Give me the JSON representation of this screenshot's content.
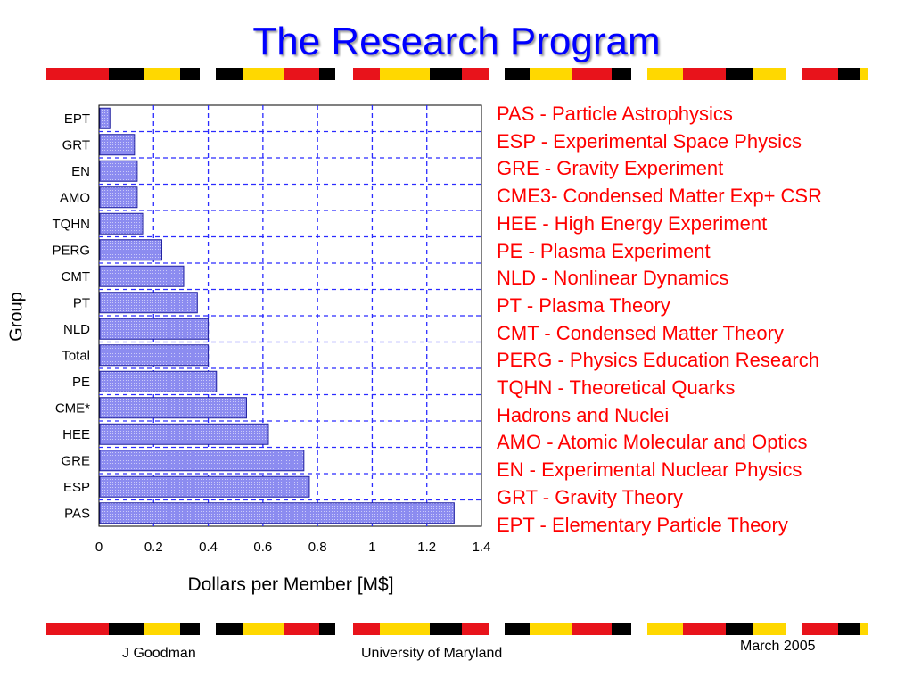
{
  "title": "The Research Program",
  "colors": {
    "title": "#0000ff",
    "legend_text": "#ff0000",
    "bar_fill": "#8c8cf0",
    "bar_stroke": "#2020a0",
    "grid": "#2b2bff",
    "band": [
      "#e8131b",
      "#000000",
      "#ffd800",
      "#ffffff"
    ]
  },
  "chart_data": {
    "type": "bar",
    "orientation": "horizontal",
    "categories": [
      "PAS",
      "ESP",
      "GRE",
      "HEE",
      "CME*",
      "PE",
      "Total",
      "NLD",
      "PT",
      "CMT",
      "PERG",
      "TQHN",
      "AMO",
      "EN",
      "GRT",
      "EPT"
    ],
    "values": [
      1.3,
      0.77,
      0.75,
      0.62,
      0.54,
      0.43,
      0.4,
      0.4,
      0.36,
      0.31,
      0.23,
      0.16,
      0.14,
      0.14,
      0.13,
      0.04
    ],
    "xlabel": "Dollars per Member [M$]",
    "ylabel": "Group",
    "xlim": [
      0,
      1.4
    ],
    "xticks": [
      "0",
      "0.2",
      "0.4",
      "0.6",
      "0.8",
      "1",
      "1.2",
      "1.4"
    ],
    "grid": true,
    "grid_style": "dashed vertical lines",
    "legend_entries": [
      "PAS - Particle Astrophysics",
      "ESP - Experimental Space Physics",
      "GRE - Gravity Experiment",
      "CME3- Condensed Matter Exp+ CSR",
      "HEE - High Energy Experiment",
      "PE - Plasma Experiment",
      "NLD - Nonlinear Dynamics",
      "PT - Plasma Theory",
      "CMT - Condensed Matter Theory",
      "PERG - Physics Education Research",
      "TQHN - Theoretical Quarks",
      "Hadrons and Nuclei",
      "AMO - Atomic  Molecular and Optics",
      "EN - Experimental Nuclear Physics",
      "GRT - Gravity Theory",
      "EPT - Elementary Particle Theory"
    ],
    "legend_placement": "right"
  },
  "footer": {
    "author": "J Goodman",
    "organization": "University of Maryland",
    "date": "March 2005"
  }
}
